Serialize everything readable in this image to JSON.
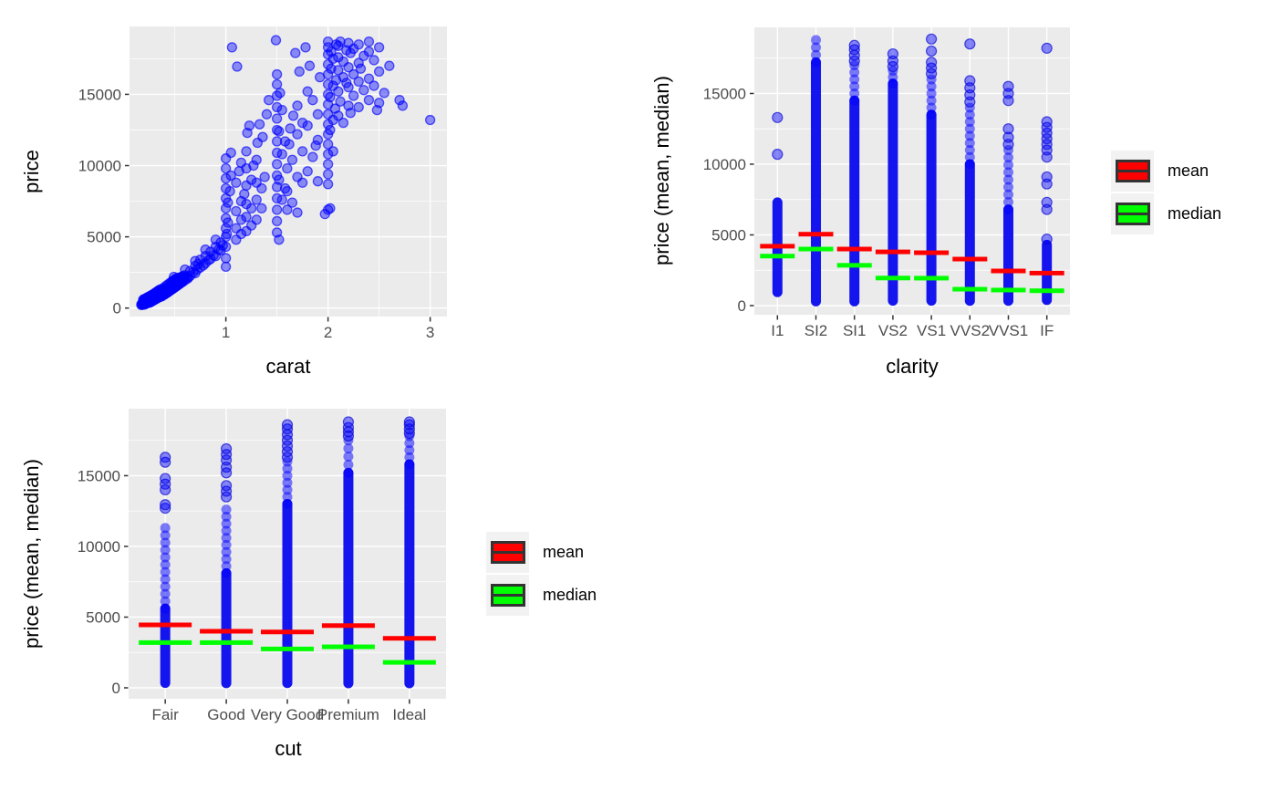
{
  "figure": {
    "background": "#FFFFFF"
  },
  "colors": {
    "panel_bg": "#EBEBEB",
    "grid": "#FFFFFF",
    "point_blue": "#0000FF",
    "mean_red": "#FF0000",
    "median_green": "#00FF00",
    "axis_text": "#4D4D4D",
    "axis_title": "#000000",
    "tick_mark": "#333333",
    "legend_key_bg": "#F2F2F2"
  },
  "chart_data": [
    {
      "type": "scatter",
      "xlabel": "carat",
      "ylabel": "price",
      "x_ticks": [
        1,
        2,
        3
      ],
      "y_ticks": [
        0,
        5000,
        10000,
        15000
      ],
      "xlim": [
        0.057,
        3.164
      ],
      "ylim": [
        -595,
        19765
      ],
      "grid": true,
      "points": [
        [
          0.2,
          340
        ],
        [
          0.2,
          400
        ],
        [
          0.21,
          360
        ],
        [
          0.21,
          430
        ],
        [
          0.22,
          390
        ],
        [
          0.22,
          460
        ],
        [
          0.23,
          370
        ],
        [
          0.23,
          500
        ],
        [
          0.24,
          420
        ],
        [
          0.24,
          550
        ],
        [
          0.25,
          450
        ],
        [
          0.25,
          580
        ],
        [
          0.26,
          480
        ],
        [
          0.26,
          620
        ],
        [
          0.27,
          520
        ],
        [
          0.27,
          660
        ],
        [
          0.28,
          500
        ],
        [
          0.28,
          700
        ],
        [
          0.29,
          550
        ],
        [
          0.29,
          740
        ],
        [
          0.3,
          600
        ],
        [
          0.3,
          680
        ],
        [
          0.3,
          790
        ],
        [
          0.31,
          640
        ],
        [
          0.31,
          830
        ],
        [
          0.32,
          680
        ],
        [
          0.32,
          880
        ],
        [
          0.33,
          720
        ],
        [
          0.33,
          930
        ],
        [
          0.34,
          760
        ],
        [
          0.34,
          980
        ],
        [
          0.35,
          800
        ],
        [
          0.35,
          1030
        ],
        [
          0.36,
          850
        ],
        [
          0.36,
          1090
        ],
        [
          0.37,
          880
        ],
        [
          0.38,
          910
        ],
        [
          0.38,
          1150
        ],
        [
          0.39,
          960
        ],
        [
          0.4,
          950
        ],
        [
          0.4,
          1220
        ],
        [
          0.41,
          1100
        ],
        [
          0.42,
          1060
        ],
        [
          0.42,
          1350
        ],
        [
          0.43,
          1200
        ],
        [
          0.44,
          1160
        ],
        [
          0.44,
          1450
        ],
        [
          0.45,
          1300
        ],
        [
          0.46,
          1260
        ],
        [
          0.46,
          1560
        ],
        [
          0.47,
          1400
        ],
        [
          0.48,
          1360
        ],
        [
          0.48,
          1660
        ],
        [
          0.5,
          1460
        ],
        [
          0.5,
          1760
        ],
        [
          0.5,
          2000
        ],
        [
          0.51,
          1600
        ],
        [
          0.52,
          1560
        ],
        [
          0.52,
          1860
        ],
        [
          0.53,
          1700
        ],
        [
          0.54,
          1800
        ],
        [
          0.55,
          1720
        ],
        [
          0.55,
          2100
        ],
        [
          0.56,
          1900
        ],
        [
          0.57,
          2000
        ],
        [
          0.58,
          2150
        ],
        [
          0.59,
          2050
        ],
        [
          0.6,
          1950
        ],
        [
          0.6,
          2300
        ],
        [
          0.6,
          2700
        ],
        [
          0.63,
          2150
        ],
        [
          0.65,
          2250
        ],
        [
          0.65,
          2600
        ],
        [
          0.68,
          2500
        ],
        [
          0.7,
          2450
        ],
        [
          0.7,
          2950
        ],
        [
          0.7,
          3300
        ],
        [
          0.72,
          2700
        ],
        [
          0.73,
          3100
        ],
        [
          0.75,
          2850
        ],
        [
          0.75,
          3400
        ],
        [
          0.78,
          3000
        ],
        [
          0.8,
          3150
        ],
        [
          0.8,
          3650
        ],
        [
          0.8,
          4100
        ],
        [
          0.83,
          3350
        ],
        [
          0.85,
          3450
        ],
        [
          0.85,
          3950
        ],
        [
          0.88,
          3700
        ],
        [
          0.9,
          3650
        ],
        [
          0.9,
          4300
        ],
        [
          0.9,
          4800
        ],
        [
          0.93,
          4100
        ],
        [
          0.95,
          4050
        ],
        [
          0.95,
          4600
        ],
        [
          0.97,
          4400
        ],
        [
          1,
          2900
        ],
        [
          1,
          3500
        ],
        [
          1,
          4300
        ],
        [
          1,
          5000
        ],
        [
          1,
          5600
        ],
        [
          1,
          6300
        ],
        [
          1,
          7000
        ],
        [
          1,
          7700
        ],
        [
          1,
          8400
        ],
        [
          1,
          9100
        ],
        [
          1,
          9800
        ],
        [
          1,
          10500
        ],
        [
          1.01,
          5200
        ],
        [
          1.02,
          6000
        ],
        [
          1.02,
          7400
        ],
        [
          1.04,
          8200
        ],
        [
          1.05,
          9300
        ],
        [
          1.05,
          10900
        ],
        [
          1.06,
          18300
        ],
        [
          1.1,
          4800
        ],
        [
          1.1,
          5600
        ],
        [
          1.1,
          6800
        ],
        [
          1.1,
          8800
        ],
        [
          1.11,
          16950
        ],
        [
          1.13,
          9600
        ],
        [
          1.15,
          5200
        ],
        [
          1.15,
          6200
        ],
        [
          1.15,
          7500
        ],
        [
          1.15,
          10200
        ],
        [
          1.18,
          8000
        ],
        [
          1.2,
          5400
        ],
        [
          1.2,
          6400
        ],
        [
          1.2,
          7300
        ],
        [
          1.2,
          8600
        ],
        [
          1.2,
          9800
        ],
        [
          1.2,
          11000
        ],
        [
          1.21,
          12300
        ],
        [
          1.23,
          12800
        ],
        [
          1.25,
          5800
        ],
        [
          1.25,
          7000
        ],
        [
          1.25,
          9000
        ],
        [
          1.27,
          10000
        ],
        [
          1.3,
          6200
        ],
        [
          1.3,
          7600
        ],
        [
          1.3,
          8800
        ],
        [
          1.3,
          10400
        ],
        [
          1.31,
          11600
        ],
        [
          1.33,
          12900
        ],
        [
          1.35,
          7000
        ],
        [
          1.35,
          8400
        ],
        [
          1.36,
          12000
        ],
        [
          1.38,
          9200
        ],
        [
          1.4,
          13600
        ],
        [
          1.42,
          14600
        ],
        [
          1.5,
          5300
        ],
        [
          1.5,
          6100
        ],
        [
          1.5,
          6900
        ],
        [
          1.5,
          7700
        ],
        [
          1.5,
          8500
        ],
        [
          1.5,
          9300
        ],
        [
          1.5,
          10100
        ],
        [
          1.5,
          10900
        ],
        [
          1.5,
          11700
        ],
        [
          1.5,
          12500
        ],
        [
          1.5,
          13300
        ],
        [
          1.5,
          14100
        ],
        [
          1.5,
          14900
        ],
        [
          1.5,
          15700
        ],
        [
          1.5,
          16400
        ],
        [
          1.49,
          18800
        ],
        [
          1.52,
          4800
        ],
        [
          1.52,
          9000
        ],
        [
          1.52,
          12400
        ],
        [
          1.53,
          15100
        ],
        [
          1.55,
          7600
        ],
        [
          1.55,
          10800
        ],
        [
          1.55,
          13900
        ],
        [
          1.58,
          8400
        ],
        [
          1.58,
          11700
        ],
        [
          1.6,
          6900
        ],
        [
          1.6,
          8200
        ],
        [
          1.6,
          9800
        ],
        [
          1.62,
          11500
        ],
        [
          1.63,
          12600
        ],
        [
          1.65,
          7400
        ],
        [
          1.65,
          10400
        ],
        [
          1.66,
          13500
        ],
        [
          1.68,
          17900
        ],
        [
          1.7,
          6700
        ],
        [
          1.7,
          9200
        ],
        [
          1.7,
          12200
        ],
        [
          1.7,
          14200
        ],
        [
          1.72,
          16600
        ],
        [
          1.75,
          8800
        ],
        [
          1.75,
          11000
        ],
        [
          1.75,
          13000
        ],
        [
          1.78,
          18300
        ],
        [
          1.8,
          9600
        ],
        [
          1.8,
          12800
        ],
        [
          1.8,
          15200
        ],
        [
          1.82,
          17000
        ],
        [
          1.85,
          10600
        ],
        [
          1.85,
          14600
        ],
        [
          1.88,
          11400
        ],
        [
          1.9,
          8900
        ],
        [
          1.9,
          11800
        ],
        [
          1.9,
          13600
        ],
        [
          1.92,
          16200
        ],
        [
          1.97,
          6600
        ],
        [
          2,
          6900
        ],
        [
          2,
          8700
        ],
        [
          2,
          9400
        ],
        [
          2,
          10100
        ],
        [
          2,
          10800
        ],
        [
          2,
          11500
        ],
        [
          2,
          12200
        ],
        [
          2,
          12900
        ],
        [
          2,
          13600
        ],
        [
          2,
          14300
        ],
        [
          2,
          15000
        ],
        [
          2,
          15700
        ],
        [
          2,
          16400
        ],
        [
          2,
          17100
        ],
        [
          2,
          17800
        ],
        [
          2,
          18300
        ],
        [
          2,
          18700
        ],
        [
          2.02,
          7000
        ],
        [
          2.02,
          12500
        ],
        [
          2.02,
          14800
        ],
        [
          2.03,
          16800
        ],
        [
          2.03,
          18000
        ],
        [
          2.05,
          11000
        ],
        [
          2.05,
          13200
        ],
        [
          2.05,
          15600
        ],
        [
          2.05,
          17500
        ],
        [
          2.07,
          14000
        ],
        [
          2.08,
          16000
        ],
        [
          2.08,
          18500
        ],
        [
          2.1,
          13500
        ],
        [
          2.1,
          15200
        ],
        [
          2.1,
          16700
        ],
        [
          2.1,
          17600
        ],
        [
          2.1,
          18400
        ],
        [
          2.12,
          14500
        ],
        [
          2.12,
          18700
        ],
        [
          2.15,
          13000
        ],
        [
          2.15,
          16200
        ],
        [
          2.15,
          17300
        ],
        [
          2.18,
          15800
        ],
        [
          2.18,
          18100
        ],
        [
          2.2,
          14200
        ],
        [
          2.2,
          15500
        ],
        [
          2.2,
          16900
        ],
        [
          2.2,
          18600
        ],
        [
          2.22,
          13700
        ],
        [
          2.22,
          17900
        ],
        [
          2.25,
          14900
        ],
        [
          2.25,
          16400
        ],
        [
          2.25,
          18200
        ],
        [
          2.3,
          14100
        ],
        [
          2.3,
          15900
        ],
        [
          2.3,
          17200
        ],
        [
          2.3,
          18500
        ],
        [
          2.32,
          16800
        ],
        [
          2.35,
          15300
        ],
        [
          2.35,
          17700
        ],
        [
          2.4,
          14600
        ],
        [
          2.4,
          16100
        ],
        [
          2.4,
          18000
        ],
        [
          2.4,
          18700
        ],
        [
          2.45,
          15600
        ],
        [
          2.45,
          17400
        ],
        [
          2.48,
          13900
        ],
        [
          2.5,
          14400
        ],
        [
          2.5,
          16600
        ],
        [
          2.5,
          18300
        ],
        [
          2.55,
          15100
        ],
        [
          2.6,
          17000
        ],
        [
          2.7,
          14600
        ],
        [
          2.73,
          14200
        ],
        [
          3,
          13200
        ]
      ]
    },
    {
      "type": "strip-crossbar",
      "xlabel": "clarity",
      "ylabel": "price (mean, median)",
      "categories": [
        "I1",
        "SI2",
        "SI1",
        "VS2",
        "VS1",
        "VVS2",
        "VVS1",
        "IF"
      ],
      "y_ticks": [
        0,
        5000,
        10000,
        15000
      ],
      "ylim": [
        -645,
        19675
      ],
      "grid": true,
      "series": [
        {
          "name": "mean",
          "values": [
            4200,
            5050,
            4000,
            3800,
            3740,
            3290,
            2450,
            2300
          ]
        },
        {
          "name": "median",
          "values": [
            3500,
            4000,
            2850,
            1950,
            1940,
            1160,
            1100,
            1050
          ]
        }
      ],
      "dense_ranges": [
        [
          950,
          7300
        ],
        [
          300,
          17200
        ],
        [
          300,
          14500
        ],
        [
          350,
          15700
        ],
        [
          350,
          13500
        ],
        [
          336,
          10000
        ],
        [
          340,
          6800
        ],
        [
          400,
          4300
        ]
      ],
      "medium_ranges": [
        null,
        [
          17200,
          18780
        ],
        [
          14500,
          17000
        ],
        [
          15700,
          16600
        ],
        [
          13500,
          16000
        ],
        [
          10000,
          14000
        ],
        [
          6800,
          11000
        ],
        null
      ],
      "outlier_points": [
        [
          10700,
          13300
        ],
        [],
        [
          17300,
          17700,
          18100,
          18400
        ],
        [
          16900,
          17300,
          17800
        ],
        [
          16400,
          16800,
          17200,
          18000,
          18850
        ],
        [
          14400,
          14900,
          15400,
          15900,
          18500
        ],
        [
          11400,
          11900,
          12500,
          14500,
          15000,
          15500
        ],
        [
          4700,
          6800,
          7300,
          8600,
          9100,
          10500,
          11000,
          11400,
          11800,
          12200,
          12600,
          13000,
          18200
        ]
      ],
      "legend": [
        {
          "label": "mean",
          "color": "#FF0000"
        },
        {
          "label": "median",
          "color": "#00FF00"
        }
      ],
      "legend_position": "right"
    },
    {
      "type": "strip-crossbar",
      "xlabel": "cut",
      "ylabel": "price (mean, median)",
      "categories": [
        "Fair",
        "Good",
        "Very Good",
        "Premium",
        "Ideal"
      ],
      "y_ticks": [
        0,
        5000,
        10000,
        15000
      ],
      "ylim": [
        -774,
        19737
      ],
      "grid": true,
      "series": [
        {
          "name": "mean",
          "values": [
            4450,
            4000,
            3950,
            4400,
            3500
          ]
        },
        {
          "name": "median",
          "values": [
            3200,
            3200,
            2750,
            2900,
            1800
          ]
        }
      ],
      "dense_ranges": [
        [
          350,
          5600
        ],
        [
          330,
          8100
        ],
        [
          336,
          13000
        ],
        [
          326,
          15200
        ],
        [
          326,
          15800
        ]
      ],
      "medium_ranges": [
        [
          5600,
          11300
        ],
        [
          8100,
          12600
        ],
        [
          13000,
          16000
        ],
        [
          15200,
          17500
        ],
        [
          15800,
          17800
        ]
      ],
      "outlier_points": [
        [
          12700,
          12950,
          14000,
          14400,
          14800,
          15950,
          16300
        ],
        [
          13500,
          13900,
          14300,
          15200,
          15600,
          16100,
          16500,
          16900
        ],
        [
          16300,
          16700,
          17100,
          17500,
          17900,
          18300,
          18600
        ],
        [
          17800,
          18100,
          18400,
          18800
        ],
        [
          18000,
          18300,
          18600,
          18800
        ]
      ],
      "legend": [
        {
          "label": "mean",
          "color": "#FF0000"
        },
        {
          "label": "median",
          "color": "#00FF00"
        }
      ],
      "legend_position": "right"
    }
  ]
}
